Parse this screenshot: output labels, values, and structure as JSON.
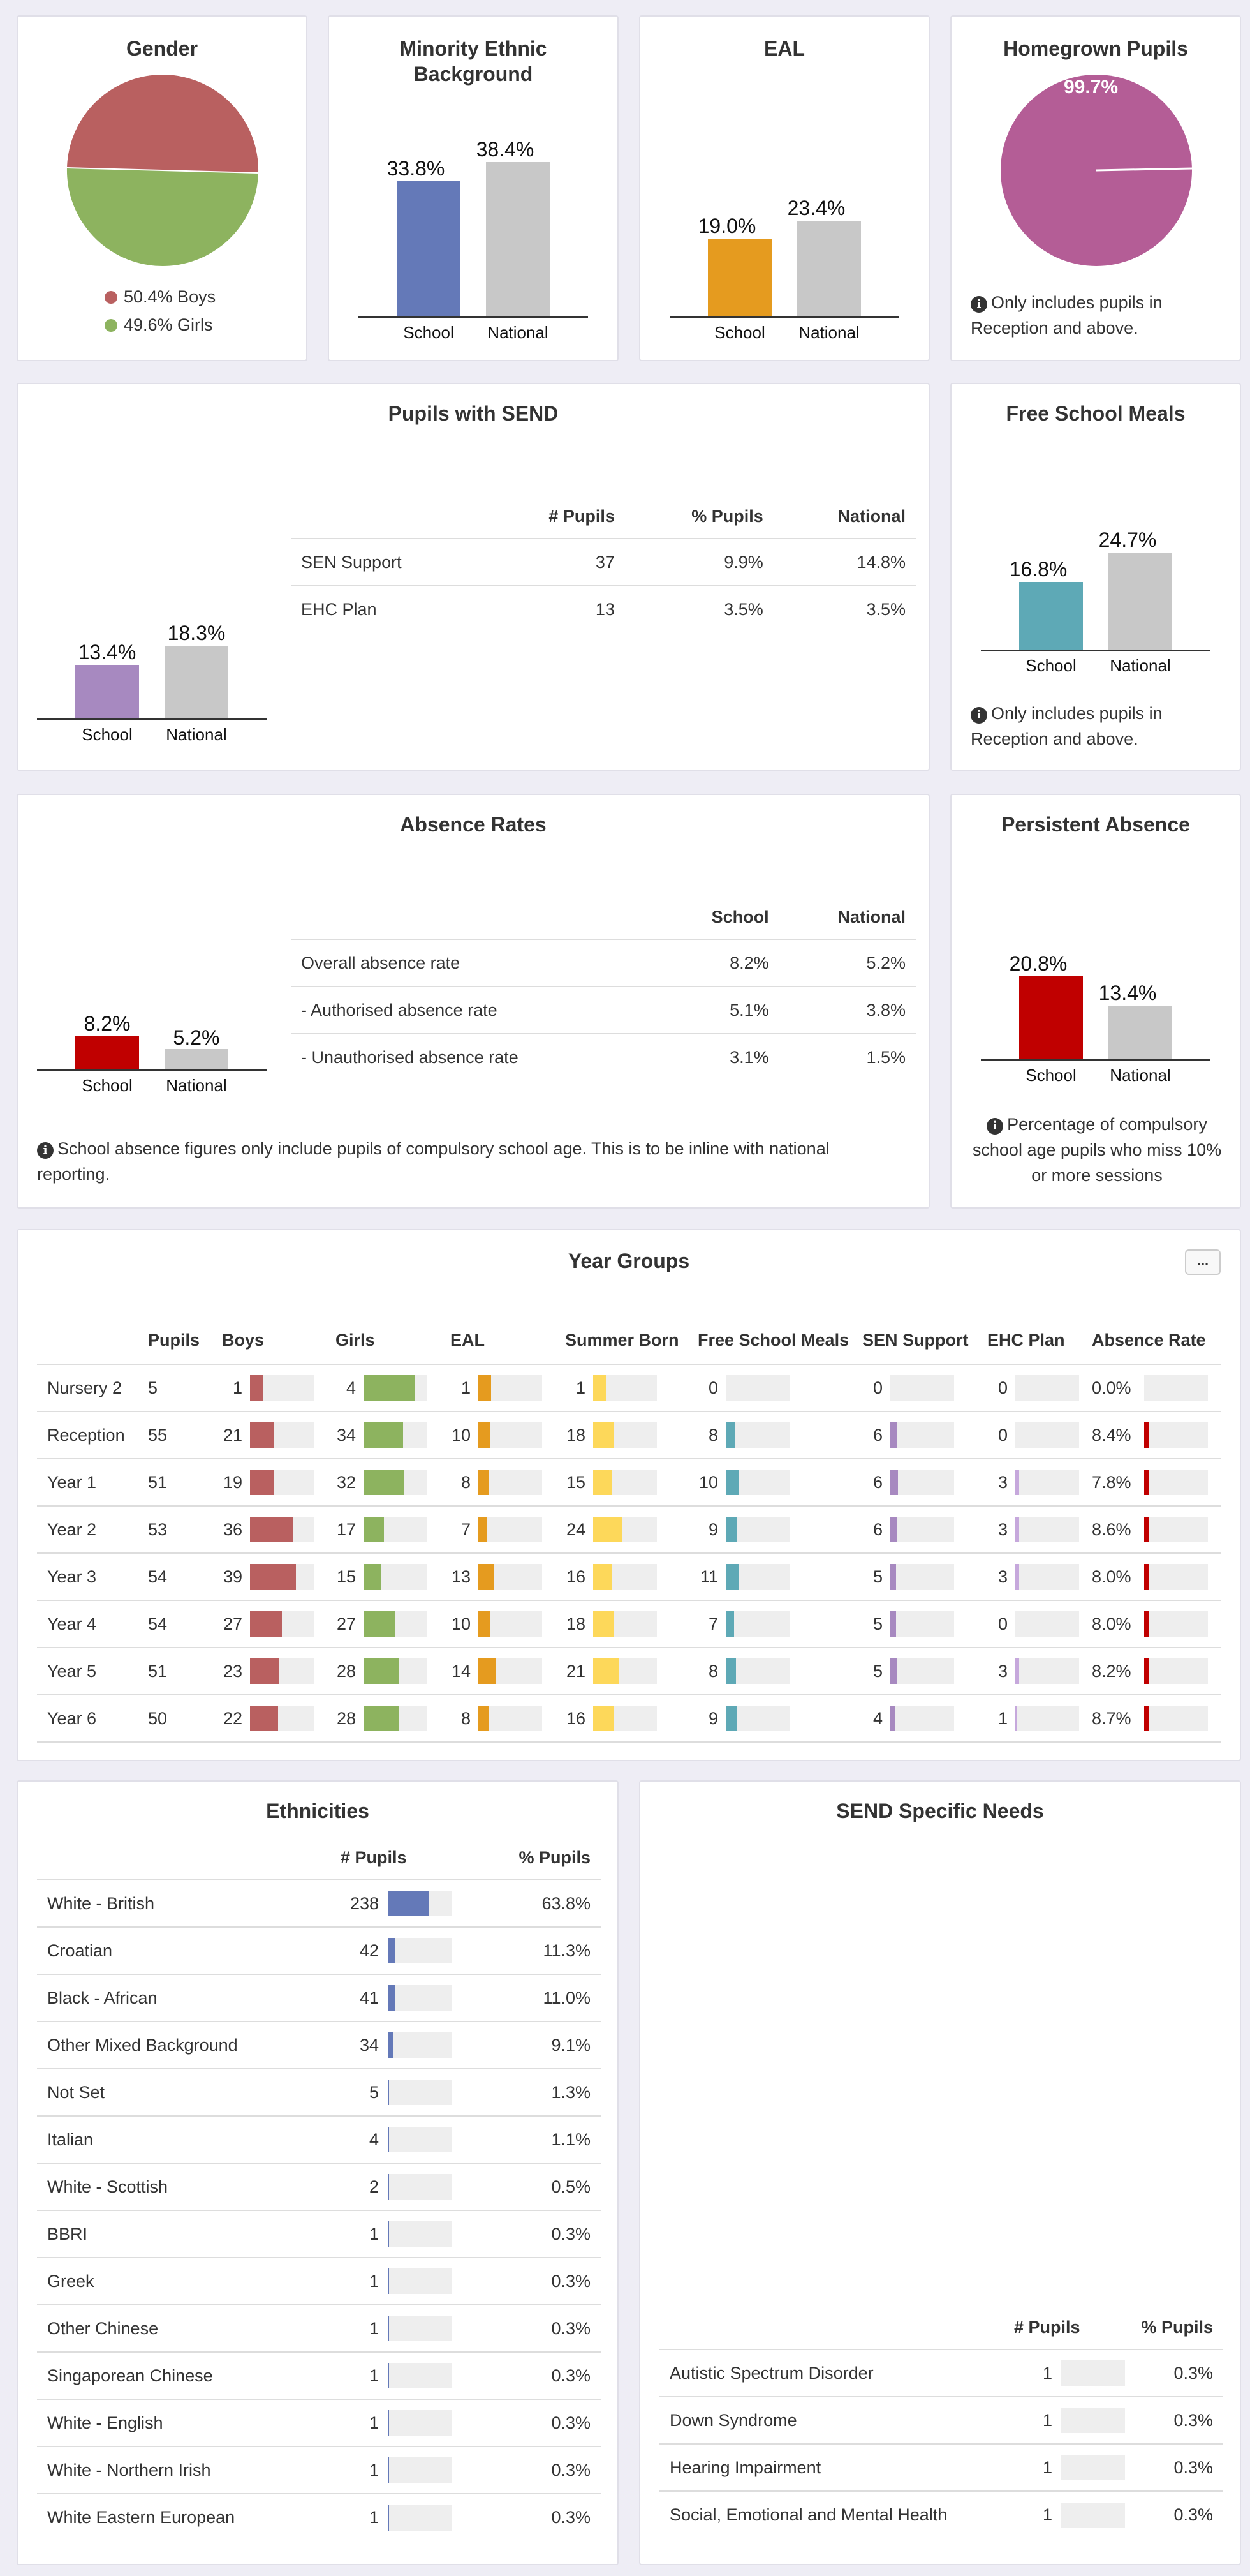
{
  "cards": {
    "gender": {
      "title": "Gender",
      "legend": [
        {
          "label": "50.4% Boys",
          "color": "#b96060"
        },
        {
          "label": "49.6% Girls",
          "color": "#8db35f"
        }
      ]
    },
    "minority": {
      "title": "Minority Ethnic Background",
      "school_value": "33.8%",
      "national_value": "38.4%",
      "school_label": "School",
      "national_label": "National"
    },
    "eal": {
      "title": "EAL",
      "school_value": "19.0%",
      "national_value": "23.4%",
      "school_label": "School",
      "national_label": "National"
    },
    "homegrown": {
      "title": "Homegrown Pupils",
      "value": "99.7%",
      "note": "Only includes pupils in Reception and above."
    },
    "send": {
      "title": "Pupils with SEND",
      "school_value": "13.4%",
      "national_value": "18.3%",
      "school_label": "School",
      "national_label": "National",
      "table": {
        "headers": [
          "",
          "# Pupils",
          "% Pupils",
          "National"
        ],
        "rows": [
          [
            "SEN Support",
            "37",
            "9.9%",
            "14.8%"
          ],
          [
            "EHC Plan",
            "13",
            "3.5%",
            "3.5%"
          ]
        ]
      }
    },
    "fsm": {
      "title": "Free School Meals",
      "school_value": "16.8%",
      "national_value": "24.7%",
      "school_label": "School",
      "national_label": "National",
      "note": "Only includes pupils in Reception and above."
    },
    "absence": {
      "title": "Absence Rates",
      "school_value": "8.2%",
      "national_value": "5.2%",
      "school_label": "School",
      "national_label": "National",
      "table": {
        "headers": [
          "",
          "School",
          "National"
        ],
        "rows": [
          [
            "Overall absence rate",
            "8.2%",
            "5.2%"
          ],
          [
            "- Authorised absence rate",
            "5.1%",
            "3.8%"
          ],
          [
            "- Unauthorised absence rate",
            "3.1%",
            "1.5%"
          ]
        ]
      },
      "note": "School absence figures only include pupils of compulsory school age. This is to be inline with national reporting."
    },
    "persistent": {
      "title": "Persistent Absence",
      "school_value": "20.8%",
      "national_value": "13.4%",
      "school_label": "School",
      "national_label": "National",
      "note": "Percentage of compulsory school age pupils who miss 10% or more sessions"
    }
  },
  "year_groups": {
    "title": "Year Groups",
    "more_button": "...",
    "headers": [
      "",
      "Pupils",
      "Boys",
      "Girls",
      "EAL",
      "Summer Born",
      "Free School Meals",
      "SEN Support",
      "EHC Plan",
      "Absence Rate"
    ],
    "rows": [
      {
        "name": "Nursery 2",
        "pupils": "5",
        "boys": "1",
        "girls": "4",
        "eal": "1",
        "summer": "1",
        "fsm": "0",
        "sen": "0",
        "ehc": "0",
        "absence": "0.0%"
      },
      {
        "name": "Reception",
        "pupils": "55",
        "boys": "21",
        "girls": "34",
        "eal": "10",
        "summer": "18",
        "fsm": "8",
        "sen": "6",
        "ehc": "0",
        "absence": "8.4%"
      },
      {
        "name": "Year 1",
        "pupils": "51",
        "boys": "19",
        "girls": "32",
        "eal": "8",
        "summer": "15",
        "fsm": "10",
        "sen": "6",
        "ehc": "3",
        "absence": "7.8%"
      },
      {
        "name": "Year 2",
        "pupils": "53",
        "boys": "36",
        "girls": "17",
        "eal": "7",
        "summer": "24",
        "fsm": "9",
        "sen": "6",
        "ehc": "3",
        "absence": "8.6%"
      },
      {
        "name": "Year 3",
        "pupils": "54",
        "boys": "39",
        "girls": "15",
        "eal": "13",
        "summer": "16",
        "fsm": "11",
        "sen": "5",
        "ehc": "3",
        "absence": "8.0%"
      },
      {
        "name": "Year 4",
        "pupils": "54",
        "boys": "27",
        "girls": "27",
        "eal": "10",
        "summer": "18",
        "fsm": "7",
        "sen": "5",
        "ehc": "0",
        "absence": "8.0%"
      },
      {
        "name": "Year 5",
        "pupils": "51",
        "boys": "23",
        "girls": "28",
        "eal": "14",
        "summer": "21",
        "fsm": "8",
        "sen": "5",
        "ehc": "3",
        "absence": "8.2%"
      },
      {
        "name": "Year 6",
        "pupils": "50",
        "boys": "22",
        "girls": "28",
        "eal": "8",
        "summer": "16",
        "fsm": "9",
        "sen": "4",
        "ehc": "1",
        "absence": "8.7%"
      }
    ]
  },
  "ethnicities": {
    "title": "Ethnicities",
    "headers": [
      "",
      "# Pupils",
      "% Pupils"
    ],
    "rows": [
      {
        "name": "White - British",
        "count": "238",
        "pct": "63.8%"
      },
      {
        "name": "Croatian",
        "count": "42",
        "pct": "11.3%"
      },
      {
        "name": "Black - African",
        "count": "41",
        "pct": "11.0%"
      },
      {
        "name": "Other Mixed Background",
        "count": "34",
        "pct": "9.1%"
      },
      {
        "name": "Not Set",
        "count": "5",
        "pct": "1.3%"
      },
      {
        "name": "Italian",
        "count": "4",
        "pct": "1.1%"
      },
      {
        "name": "White - Scottish",
        "count": "2",
        "pct": "0.5%"
      },
      {
        "name": "BBRI",
        "count": "1",
        "pct": "0.3%"
      },
      {
        "name": "Greek",
        "count": "1",
        "pct": "0.3%"
      },
      {
        "name": "Other Chinese",
        "count": "1",
        "pct": "0.3%"
      },
      {
        "name": "Singaporean Chinese",
        "count": "1",
        "pct": "0.3%"
      },
      {
        "name": "White - English",
        "count": "1",
        "pct": "0.3%"
      },
      {
        "name": "White - Northern Irish",
        "count": "1",
        "pct": "0.3%"
      },
      {
        "name": "White Eastern European",
        "count": "1",
        "pct": "0.3%"
      }
    ]
  },
  "send_needs": {
    "title": "SEND Specific Needs",
    "headers": [
      "",
      "# Pupils",
      "% Pupils"
    ],
    "rows": [
      {
        "name": "Autistic Spectrum Disorder",
        "count": "1",
        "pct": "0.3%"
      },
      {
        "name": "Down Syndrome",
        "count": "1",
        "pct": "0.3%"
      },
      {
        "name": "Hearing Impairment",
        "count": "1",
        "pct": "0.3%"
      },
      {
        "name": "Social, Emotional and Mental Health",
        "count": "1",
        "pct": "0.3%"
      }
    ]
  },
  "colors": {
    "boys": "#b96060",
    "girls": "#8db35f",
    "eal": "#e59b1f",
    "summer": "#fdd85a",
    "fsm": "#5ea9b6",
    "sen": "#a789c0",
    "ehc": "#c6a8dc",
    "absence": "#c00000",
    "minority": "#6479b8",
    "homegrown": "#b45d96",
    "national": "#c8c8c8"
  }
}
